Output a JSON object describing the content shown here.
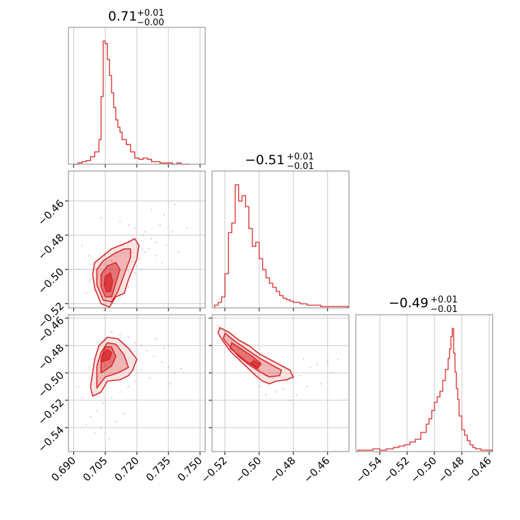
{
  "colors": {
    "accent": "#d62728",
    "grid": "#c8c8c8",
    "frame": "#808080"
  },
  "chart_data": [
    {
      "type": "histogram",
      "panel": "p0-diag",
      "title_value": "0.71",
      "title_plus": "+0.01",
      "title_minus": "−0.00",
      "xlim": [
        0.6875,
        0.7525
      ],
      "xticks": [
        0.69,
        0.705,
        0.72,
        0.735,
        0.75
      ],
      "bin_edges": [
        0.69,
        0.692,
        0.694,
        0.696,
        0.698,
        0.7,
        0.702,
        0.703,
        0.704,
        0.705,
        0.706,
        0.707,
        0.708,
        0.709,
        0.71,
        0.711,
        0.712,
        0.713,
        0.715,
        0.717,
        0.719,
        0.721,
        0.723,
        0.725,
        0.727,
        0.729,
        0.731,
        0.733,
        0.735,
        0.737,
        0.739,
        0.741,
        0.745
      ],
      "counts": [
        0,
        1,
        2,
        3,
        6,
        10,
        20,
        55,
        100,
        98,
        85,
        72,
        58,
        46,
        36,
        30,
        26,
        20,
        16,
        10,
        5,
        4,
        5,
        4,
        2,
        2,
        1,
        1,
        1,
        0,
        1,
        0
      ]
    },
    {
      "type": "histogram",
      "panel": "p1-diag",
      "title_value": "−0.51",
      "title_plus": "+0.01",
      "title_minus": "−0.01",
      "xlim": [
        -0.5275,
        -0.4475
      ],
      "xticks": [
        -0.52,
        -0.5,
        -0.48,
        -0.46
      ],
      "xtick_labels": [
        "−0.52",
        "−0.50",
        "−0.48",
        "−0.46"
      ],
      "bin_edges": [
        -0.526,
        -0.524,
        -0.522,
        -0.52,
        -0.518,
        -0.516,
        -0.514,
        -0.512,
        -0.51,
        -0.508,
        -0.506,
        -0.504,
        -0.502,
        -0.5,
        -0.498,
        -0.496,
        -0.494,
        -0.492,
        -0.49,
        -0.488,
        -0.486,
        -0.484,
        -0.482,
        -0.48,
        -0.476,
        -0.472,
        -0.468,
        -0.464,
        -0.46,
        -0.456,
        -0.452,
        -0.448
      ],
      "counts": [
        2,
        4,
        8,
        25,
        55,
        62,
        90,
        78,
        82,
        74,
        58,
        45,
        48,
        36,
        28,
        22,
        18,
        15,
        12,
        9,
        7,
        6,
        5,
        4,
        3,
        2,
        2,
        1,
        1,
        1,
        1
      ]
    },
    {
      "type": "histogram",
      "panel": "p2-diag",
      "title_value": "−0.49",
      "title_plus": "+0.01",
      "title_minus": "−0.01",
      "xlim": [
        -0.5575,
        -0.4575
      ],
      "xticks": [
        -0.54,
        -0.52,
        -0.5,
        -0.48,
        -0.46
      ],
      "xtick_labels": [
        "−0.54",
        "−0.52",
        "−0.50",
        "−0.48",
        "−0.46"
      ],
      "bin_edges": [
        -0.556,
        -0.55,
        -0.545,
        -0.54,
        -0.535,
        -0.53,
        -0.526,
        -0.522,
        -0.518,
        -0.514,
        -0.51,
        -0.506,
        -0.504,
        -0.502,
        -0.5,
        -0.498,
        -0.496,
        -0.494,
        -0.492,
        -0.49,
        -0.489,
        -0.488,
        -0.487,
        -0.486,
        -0.485,
        -0.484,
        -0.483,
        -0.482,
        -0.48,
        -0.478,
        -0.476,
        -0.474,
        -0.472,
        -0.47,
        -0.466,
        -0.462,
        -0.458
      ],
      "counts": [
        1,
        1,
        2,
        1,
        2,
        3,
        4,
        5,
        7,
        9,
        14,
        20,
        24,
        30,
        36,
        40,
        44,
        52,
        60,
        68,
        75,
        84,
        90,
        72,
        58,
        46,
        38,
        26,
        16,
        12,
        8,
        5,
        3,
        2,
        1,
        1
      ]
    },
    {
      "type": "scatter",
      "panel": "p10",
      "xlim": [
        0.6875,
        0.7525
      ],
      "ylim": [
        -0.5225,
        -0.4425
      ],
      "xticks": [
        0.69,
        0.705,
        0.72,
        0.735,
        0.75
      ],
      "yticks": [
        -0.46,
        -0.48,
        -0.5,
        -0.52
      ],
      "ytick_labels": [
        "−0.46",
        "−0.48",
        "−0.50",
        "−0.52"
      ],
      "points": [
        [
          0.703,
          -0.47
        ],
        [
          0.712,
          -0.472
        ],
        [
          0.716,
          -0.474
        ],
        [
          0.719,
          -0.476
        ],
        [
          0.723,
          -0.48
        ],
        [
          0.724,
          -0.478
        ],
        [
          0.727,
          -0.482
        ],
        [
          0.729,
          -0.484
        ],
        [
          0.734,
          -0.486
        ],
        [
          0.737,
          -0.478
        ],
        [
          0.731,
          -0.474
        ],
        [
          0.694,
          -0.486
        ],
        [
          0.697,
          -0.492
        ],
        [
          0.699,
          -0.497
        ],
        [
          0.701,
          -0.5
        ],
        [
          0.703,
          -0.504
        ],
        [
          0.706,
          -0.508
        ],
        [
          0.708,
          -0.495
        ],
        [
          0.71,
          -0.49
        ],
        [
          0.713,
          -0.486
        ],
        [
          0.716,
          -0.484
        ],
        [
          0.718,
          -0.49
        ],
        [
          0.721,
          -0.494
        ],
        [
          0.724,
          -0.49
        ],
        [
          0.726,
          -0.488
        ],
        [
          0.729,
          -0.492
        ],
        [
          0.732,
          -0.496
        ],
        [
          0.698,
          -0.506
        ],
        [
          0.7,
          -0.512
        ],
        [
          0.712,
          -0.516
        ],
        [
          0.716,
          -0.51
        ],
        [
          0.719,
          -0.502
        ],
        [
          0.722,
          -0.5
        ],
        [
          0.705,
          -0.518
        ],
        [
          0.709,
          -0.52
        ],
        [
          0.696,
          -0.514
        ],
        [
          0.74,
          -0.49
        ],
        [
          0.738,
          -0.462
        ],
        [
          0.744,
          -0.476
        ],
        [
          0.733,
          -0.468
        ],
        [
          0.692,
          -0.5
        ],
        [
          0.727,
          -0.465
        ]
      ],
      "contours": [
        [
          [
            0.703,
            -0.52
          ],
          [
            0.707,
            -0.522
          ],
          [
            0.71,
            -0.516
          ],
          [
            0.714,
            -0.514
          ],
          [
            0.716,
            -0.506
          ],
          [
            0.72,
            -0.494
          ],
          [
            0.721,
            -0.486
          ],
          [
            0.719,
            -0.482
          ],
          [
            0.716,
            -0.484
          ],
          [
            0.712,
            -0.486
          ],
          [
            0.708,
            -0.488
          ],
          [
            0.704,
            -0.492
          ],
          [
            0.7,
            -0.496
          ],
          [
            0.699,
            -0.503
          ],
          [
            0.7,
            -0.511
          ]
        ],
        [
          [
            0.704,
            -0.518
          ],
          [
            0.708,
            -0.519
          ],
          [
            0.711,
            -0.513
          ],
          [
            0.714,
            -0.503
          ],
          [
            0.717,
            -0.493
          ],
          [
            0.717,
            -0.488
          ],
          [
            0.714,
            -0.488
          ],
          [
            0.709,
            -0.491
          ],
          [
            0.704,
            -0.495
          ],
          [
            0.701,
            -0.5
          ],
          [
            0.701,
            -0.509
          ]
        ],
        [
          [
            0.705,
            -0.516
          ],
          [
            0.708,
            -0.516
          ],
          [
            0.71,
            -0.508
          ],
          [
            0.712,
            -0.5
          ],
          [
            0.71,
            -0.496
          ],
          [
            0.706,
            -0.498
          ],
          [
            0.703,
            -0.503
          ],
          [
            0.703,
            -0.51
          ]
        ],
        [
          [
            0.7055,
            -0.513
          ],
          [
            0.7075,
            -0.513
          ],
          [
            0.7085,
            -0.507
          ],
          [
            0.7075,
            -0.502
          ],
          [
            0.705,
            -0.504
          ],
          [
            0.7045,
            -0.509
          ]
        ]
      ]
    },
    {
      "type": "scatter",
      "panel": "p20",
      "xlim": [
        0.6875,
        0.7525
      ],
      "ylim": [
        -0.5575,
        -0.4575
      ],
      "xticks": [
        0.69,
        0.705,
        0.72,
        0.735,
        0.75
      ],
      "xtick_labels": [
        "0.690",
        "0.705",
        "0.720",
        "0.735",
        "0.750"
      ],
      "yticks": [
        -0.46,
        -0.48,
        -0.5,
        -0.52,
        -0.54
      ],
      "ytick_labels": [
        "−0.46",
        "−0.48",
        "−0.50",
        "−0.52",
        "−0.54"
      ],
      "points": [
        [
          0.708,
          -0.47
        ],
        [
          0.712,
          -0.472
        ],
        [
          0.716,
          -0.474
        ],
        [
          0.719,
          -0.478
        ],
        [
          0.722,
          -0.48
        ],
        [
          0.725,
          -0.484
        ],
        [
          0.728,
          -0.488
        ],
        [
          0.732,
          -0.492
        ],
        [
          0.735,
          -0.496
        ],
        [
          0.738,
          -0.5
        ],
        [
          0.726,
          -0.504
        ],
        [
          0.722,
          -0.498
        ],
        [
          0.719,
          -0.506
        ],
        [
          0.716,
          -0.51
        ],
        [
          0.712,
          -0.514
        ],
        [
          0.708,
          -0.518
        ],
        [
          0.704,
          -0.522
        ],
        [
          0.701,
          -0.528
        ],
        [
          0.698,
          -0.532
        ],
        [
          0.696,
          -0.538
        ],
        [
          0.7,
          -0.544
        ],
        [
          0.703,
          -0.54
        ],
        [
          0.71,
          -0.536
        ],
        [
          0.714,
          -0.53
        ],
        [
          0.694,
          -0.518
        ],
        [
          0.692,
          -0.51
        ],
        [
          0.729,
          -0.475
        ],
        [
          0.733,
          -0.482
        ],
        [
          0.741,
          -0.497
        ],
        [
          0.736,
          -0.508
        ],
        [
          0.707,
          -0.548
        ]
      ],
      "contours": [
        [
          [
            0.699,
            -0.517
          ],
          [
            0.703,
            -0.514
          ],
          [
            0.706,
            -0.506
          ],
          [
            0.712,
            -0.505
          ],
          [
            0.716,
            -0.502
          ],
          [
            0.718,
            -0.498
          ],
          [
            0.72,
            -0.49
          ],
          [
            0.716,
            -0.482
          ],
          [
            0.711,
            -0.475
          ],
          [
            0.706,
            -0.474
          ],
          [
            0.702,
            -0.48
          ],
          [
            0.7,
            -0.49
          ],
          [
            0.699,
            -0.5
          ],
          [
            0.698,
            -0.51
          ]
        ],
        [
          [
            0.701,
            -0.511
          ],
          [
            0.705,
            -0.503
          ],
          [
            0.711,
            -0.5
          ],
          [
            0.716,
            -0.496
          ],
          [
            0.714,
            -0.487
          ],
          [
            0.71,
            -0.479
          ],
          [
            0.706,
            -0.478
          ],
          [
            0.703,
            -0.485
          ],
          [
            0.701,
            -0.495
          ]
        ],
        [
          [
            0.703,
            -0.5
          ],
          [
            0.708,
            -0.495
          ],
          [
            0.71,
            -0.488
          ],
          [
            0.708,
            -0.481
          ],
          [
            0.705,
            -0.481
          ],
          [
            0.703,
            -0.489
          ]
        ],
        [
          [
            0.7035,
            -0.492
          ],
          [
            0.707,
            -0.49
          ],
          [
            0.708,
            -0.485
          ],
          [
            0.706,
            -0.483
          ],
          [
            0.704,
            -0.486
          ]
        ]
      ]
    },
    {
      "type": "scatter",
      "panel": "p21",
      "xlim": [
        -0.5275,
        -0.4475
      ],
      "ylim": [
        -0.5575,
        -0.4575
      ],
      "xticks": [
        -0.52,
        -0.5,
        -0.48,
        -0.46
      ],
      "xtick_labels": [
        "−0.52",
        "−0.50",
        "−0.48",
        "−0.46"
      ],
      "yticks": [
        -0.46,
        -0.48,
        -0.5,
        -0.52,
        -0.54
      ],
      "points": [
        [
          -0.524,
          -0.466
        ],
        [
          -0.52,
          -0.47
        ],
        [
          -0.516,
          -0.476
        ],
        [
          -0.512,
          -0.482
        ],
        [
          -0.508,
          -0.488
        ],
        [
          -0.504,
          -0.494
        ],
        [
          -0.5,
          -0.498
        ],
        [
          -0.496,
          -0.502
        ],
        [
          -0.492,
          -0.504
        ],
        [
          -0.488,
          -0.506
        ],
        [
          -0.484,
          -0.506
        ],
        [
          -0.48,
          -0.504
        ],
        [
          -0.476,
          -0.502
        ],
        [
          -0.47,
          -0.496
        ],
        [
          -0.466,
          -0.494
        ],
        [
          -0.46,
          -0.492
        ],
        [
          -0.454,
          -0.49
        ],
        [
          -0.49,
          -0.514
        ],
        [
          -0.486,
          -0.512
        ],
        [
          -0.496,
          -0.516
        ],
        [
          -0.482,
          -0.52
        ],
        [
          -0.478,
          -0.516
        ],
        [
          -0.472,
          -0.51
        ],
        [
          -0.506,
          -0.484
        ],
        [
          -0.514,
          -0.472
        ],
        [
          -0.5,
          -0.51
        ],
        [
          -0.464,
          -0.508
        ],
        [
          -0.458,
          -0.5
        ],
        [
          -0.474,
          -0.49
        ]
      ],
      "contours": [
        [
          [
            -0.523,
            -0.467
          ],
          [
            -0.518,
            -0.47
          ],
          [
            -0.512,
            -0.476
          ],
          [
            -0.506,
            -0.48
          ],
          [
            -0.5,
            -0.486
          ],
          [
            -0.494,
            -0.49
          ],
          [
            -0.488,
            -0.494
          ],
          [
            -0.482,
            -0.498
          ],
          [
            -0.48,
            -0.503
          ],
          [
            -0.484,
            -0.505
          ],
          [
            -0.49,
            -0.506
          ],
          [
            -0.494,
            -0.508
          ],
          [
            -0.498,
            -0.506
          ],
          [
            -0.502,
            -0.502
          ],
          [
            -0.507,
            -0.496
          ],
          [
            -0.512,
            -0.49
          ],
          [
            -0.517,
            -0.484
          ],
          [
            -0.521,
            -0.477
          ],
          [
            -0.524,
            -0.471
          ]
        ],
        [
          [
            -0.52,
            -0.471
          ],
          [
            -0.514,
            -0.477
          ],
          [
            -0.507,
            -0.483
          ],
          [
            -0.5,
            -0.489
          ],
          [
            -0.493,
            -0.494
          ],
          [
            -0.487,
            -0.498
          ],
          [
            -0.488,
            -0.502
          ],
          [
            -0.494,
            -0.503
          ],
          [
            -0.5,
            -0.499
          ],
          [
            -0.506,
            -0.494
          ],
          [
            -0.512,
            -0.488
          ],
          [
            -0.517,
            -0.481
          ],
          [
            -0.521,
            -0.475
          ]
        ],
        [
          [
            -0.516,
            -0.478
          ],
          [
            -0.51,
            -0.483
          ],
          [
            -0.504,
            -0.488
          ],
          [
            -0.499,
            -0.493
          ],
          [
            -0.501,
            -0.497
          ],
          [
            -0.507,
            -0.492
          ],
          [
            -0.512,
            -0.487
          ],
          [
            -0.517,
            -0.482
          ]
        ],
        [
          [
            -0.503,
            -0.491
          ],
          [
            -0.499,
            -0.494
          ],
          [
            -0.501,
            -0.496
          ],
          [
            -0.505,
            -0.493
          ]
        ]
      ]
    }
  ]
}
